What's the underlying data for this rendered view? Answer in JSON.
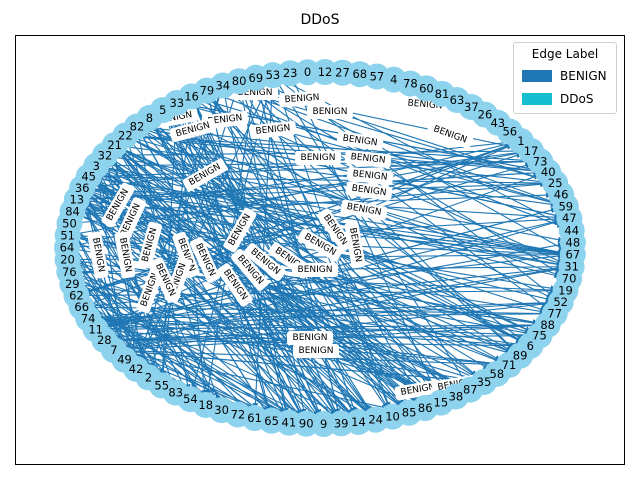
{
  "title": "DDoS",
  "legend": {
    "title": "Edge Label",
    "entries": [
      {
        "label": "BENIGN",
        "color": "#1f77b4"
      },
      {
        "label": "DDoS",
        "color": "#17becf"
      }
    ]
  },
  "colors": {
    "node_fill": "#8dd3ee",
    "benign_edge": "#1f77b4",
    "ddos_edge": "#17becf"
  },
  "nodes": [
    "0",
    "12",
    "27",
    "68",
    "57",
    "4",
    "78",
    "60",
    "81",
    "63",
    "37",
    "26",
    "43",
    "56",
    "1",
    "17",
    "73",
    "40",
    "25",
    "46",
    "59",
    "47",
    "44",
    "48",
    "67",
    "31",
    "70",
    "19",
    "52",
    "77",
    "88",
    "75",
    "6",
    "89",
    "71",
    "58",
    "35",
    "87",
    "38",
    "15",
    "86",
    "85",
    "10",
    "24",
    "14",
    "39",
    "9",
    "90",
    "41",
    "65",
    "61",
    "72",
    "30",
    "18",
    "54",
    "83",
    "55",
    "2",
    "42",
    "49",
    "7",
    "28",
    "11",
    "74",
    "66",
    "62",
    "29",
    "76",
    "20",
    "64",
    "51",
    "50",
    "84",
    "13",
    "36",
    "45",
    "3",
    "32",
    "21",
    "22",
    "82",
    "8",
    "5",
    "33",
    "16",
    "79",
    "34",
    "80",
    "69",
    "53",
    "23"
  ],
  "edge_label_text": "BENIGN"
}
